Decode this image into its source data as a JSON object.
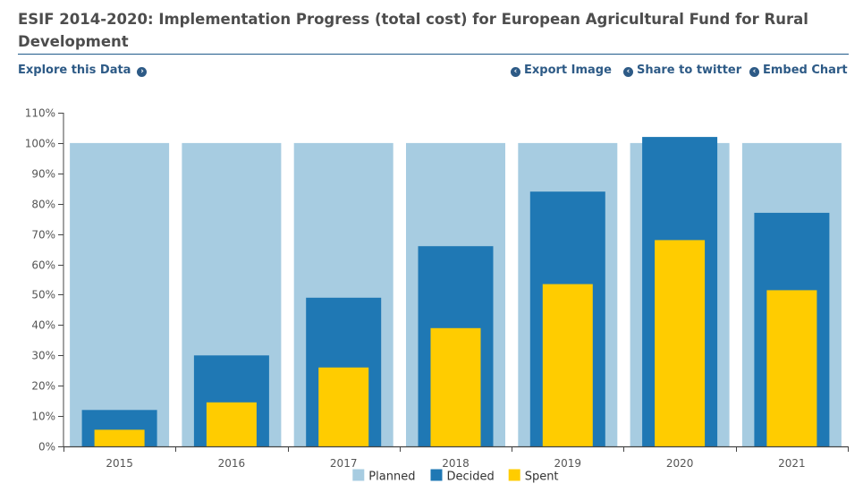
{
  "header": {
    "title": "ESIF 2014-2020: Implementation Progress (total cost) for European Agricultural Fund for Rural Development"
  },
  "toolbar": {
    "explore_label": "Explore this Data",
    "export_label": "Export Image",
    "share_label": "Share to twitter",
    "embed_label": "Embed Chart",
    "link_color": "#2d5a86"
  },
  "chart_data": {
    "type": "bar",
    "categories": [
      "2015",
      "2016",
      "2017",
      "2018",
      "2019",
      "2020",
      "2021"
    ],
    "series": [
      {
        "name": "Planned",
        "color": "#a7cce1",
        "values": [
          100,
          100,
          100,
          100,
          100,
          100,
          100
        ]
      },
      {
        "name": "Decided",
        "color": "#1f78b4",
        "values": [
          12,
          30,
          49,
          66,
          84,
          102,
          77
        ]
      },
      {
        "name": "Spent",
        "color": "#ffcc00",
        "values": [
          5.5,
          14.5,
          26,
          39,
          53.5,
          68,
          51.5
        ]
      }
    ],
    "ylim": [
      0,
      110
    ],
    "yticks": [
      0,
      10,
      20,
      30,
      40,
      50,
      60,
      70,
      80,
      90,
      100,
      110
    ],
    "ytick_labels": [
      "0%",
      "10%",
      "20%",
      "30%",
      "40%",
      "50%",
      "60%",
      "70%",
      "80%",
      "90%",
      "100%",
      "110%"
    ],
    "grid": false,
    "legend_position": "bottom-center",
    "title": "",
    "xlabel": "",
    "ylabel": ""
  }
}
